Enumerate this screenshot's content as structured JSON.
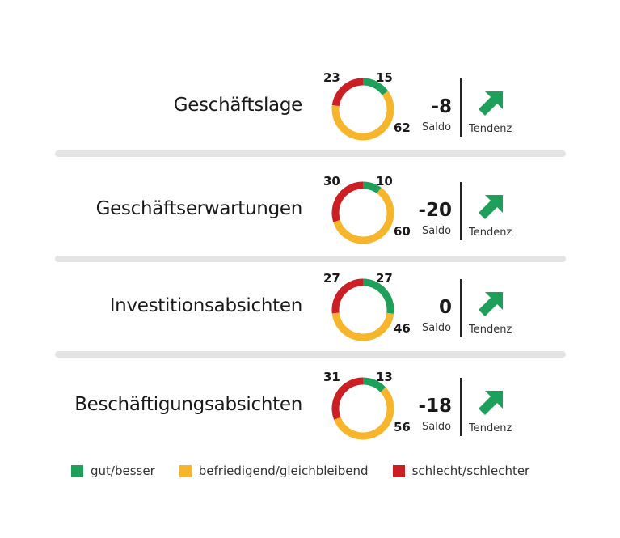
{
  "colors": {
    "good": "#1fa05a",
    "neutral": "#f7b52c",
    "bad": "#cc1f24",
    "divider": "#e4e4e4"
  },
  "rows": [
    {
      "label": "Geschäftslage",
      "good": 15,
      "neutral": 62,
      "bad": 23,
      "saldo": "-8",
      "saldo_label": "Saldo",
      "trend_label": "Tendenz",
      "trend": "up-right"
    },
    {
      "label": "Geschäftserwartungen",
      "good": 10,
      "neutral": 60,
      "bad": 30,
      "saldo": "-20",
      "saldo_label": "Saldo",
      "trend_label": "Tendenz",
      "trend": "up-right"
    },
    {
      "label": "Investitionsabsichten",
      "good": 27,
      "neutral": 46,
      "bad": 27,
      "saldo": "0",
      "saldo_label": "Saldo",
      "trend_label": "Tendenz",
      "trend": "up-right"
    },
    {
      "label": "Beschäftigungsabsichten",
      "good": 13,
      "neutral": 56,
      "bad": 31,
      "saldo": "-18",
      "saldo_label": "Saldo",
      "trend_label": "Tendenz",
      "trend": "up-right"
    }
  ],
  "legend": [
    {
      "label": "gut/besser",
      "color": "#1fa05a"
    },
    {
      "label": "befriedigend/gleichbleibend",
      "color": "#f7b52c"
    },
    {
      "label": "schlecht/schlechter",
      "color": "#cc1f24"
    }
  ],
  "chart_data": {
    "type": "pie",
    "variant": "donut",
    "categories": [
      "Geschäftslage",
      "Geschäftserwartungen",
      "Investitionsabsichten",
      "Beschäftigungsabsichten"
    ],
    "series": [
      {
        "name": "gut/besser",
        "values": [
          15,
          10,
          27,
          13
        ]
      },
      {
        "name": "befriedigend/gleichbleibend",
        "values": [
          62,
          60,
          46,
          56
        ]
      },
      {
        "name": "schlecht/schlechter",
        "values": [
          23,
          30,
          27,
          31
        ]
      }
    ],
    "saldo": [
      -8,
      -20,
      0,
      -18
    ],
    "tendenz": [
      "up",
      "up",
      "up",
      "up"
    ],
    "legend_position": "bottom"
  }
}
